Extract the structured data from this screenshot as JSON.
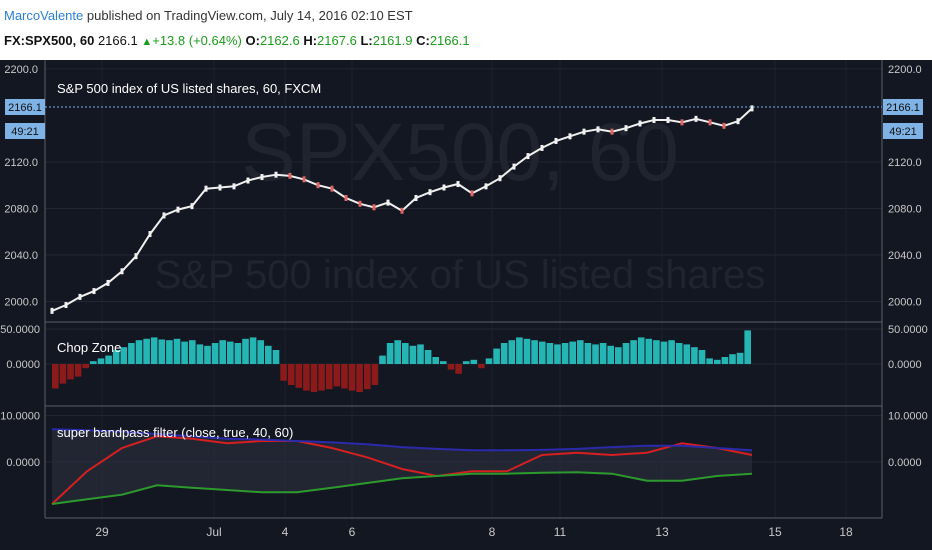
{
  "header": {
    "author": "MarcoValente",
    "published_text": "published on TradingView.com, July 14, 2016 02:10 EST",
    "symbol": "FX:SPX500, 60",
    "last": "2166.1",
    "change": "+13.8 (+0.64%)",
    "o_label": "O:",
    "o": "2162.6",
    "h_label": "H:",
    "h": "2167.6",
    "l_label": "L:",
    "l": "2161.9",
    "c_label": "C:",
    "c": "2166.1"
  },
  "colors": {
    "background": "#131722",
    "candle_body": "#f0f0f0",
    "candle_bear": "#e06666",
    "chop_pos": "#26b5b5",
    "chop_neg": "#8b1a1a",
    "bpf_red": "#d42020",
    "bpf_blue": "#2a2aaa",
    "bpf_green": "#2d9a2d",
    "price_label_bg": "#7fb2e5"
  },
  "chart_data": [
    {
      "type": "line",
      "pane": "price",
      "title": "S&P 500 index of US listed shares, 60, FXCM",
      "watermark_symbol": "SPX500, 60",
      "watermark_desc": "S&P 500 index of US listed shares",
      "y_ticks": [
        "2200.0",
        "2120.0",
        "2080.0",
        "2040.0",
        "2000.0"
      ],
      "ylim": [
        1985,
        2205
      ],
      "last_price_label": "2166.1",
      "countdown_label": "49:21",
      "x_ticks": [
        "29",
        "Jul",
        "4",
        "6",
        "8",
        "11",
        "13",
        "15",
        "18"
      ],
      "x": [
        0,
        4,
        8,
        12,
        16,
        20,
        24,
        28,
        32,
        36,
        40,
        44,
        48,
        52,
        56,
        60,
        64,
        68,
        72,
        76,
        80,
        84,
        88,
        92,
        96,
        100,
        104,
        108,
        112,
        116,
        120,
        124,
        128,
        132,
        136,
        140,
        144,
        148,
        152,
        156,
        160,
        164,
        168,
        172,
        176,
        180,
        184,
        188,
        192,
        196,
        200
      ],
      "close": [
        1992,
        1997,
        2004,
        2009,
        2016,
        2026,
        2039,
        2058,
        2074,
        2079,
        2082,
        2097,
        2098,
        2099,
        2104,
        2107,
        2109,
        2108,
        2105,
        2100,
        2097,
        2089,
        2084,
        2081,
        2085,
        2078,
        2089,
        2094,
        2098,
        2101,
        2093,
        2099,
        2106,
        2116,
        2125,
        2132,
        2138,
        2142,
        2146,
        2148,
        2146,
        2149,
        2153,
        2156,
        2156,
        2154,
        2157,
        2154,
        2151,
        2155,
        2166
      ]
    },
    {
      "type": "bar",
      "pane": "indicator",
      "title": "Chop Zone",
      "y_ticks": [
        "50.0000",
        "0.0000"
      ],
      "ylim": [
        -60,
        60
      ],
      "values": [
        -35,
        -28,
        -22,
        -18,
        -6,
        4,
        8,
        12,
        20,
        24,
        30,
        34,
        36,
        38,
        35,
        34,
        36,
        32,
        34,
        28,
        26,
        30,
        34,
        32,
        30,
        36,
        38,
        34,
        26,
        20,
        -24,
        -30,
        -34,
        -38,
        -40,
        -38,
        -36,
        -32,
        -35,
        -38,
        -40,
        -36,
        -30,
        12,
        30,
        34,
        30,
        26,
        28,
        20,
        10,
        4,
        -8,
        -14,
        4,
        6,
        -6,
        8,
        22,
        30,
        34,
        38,
        36,
        34,
        32,
        30,
        28,
        30,
        32,
        34,
        30,
        28,
        30,
        26,
        24,
        30,
        34,
        38,
        36,
        34,
        32,
        34,
        30,
        28,
        24,
        20,
        8,
        6,
        10,
        14,
        16,
        48
      ]
    },
    {
      "type": "line",
      "pane": "indicator",
      "title": "super bandpass filter (close, true, 40, 60)",
      "y_ticks": [
        "10.0000",
        "0.0000"
      ],
      "ylim": [
        -12,
        12
      ],
      "x": [
        0,
        5,
        10,
        15,
        20,
        25,
        30,
        35,
        40,
        45,
        50,
        55,
        60,
        65,
        70,
        75,
        80,
        85,
        90,
        95,
        100
      ],
      "series": [
        {
          "values": [
            -9,
            -2,
            3,
            5.5,
            5,
            4,
            4.5,
            4.5,
            3,
            1,
            -1.5,
            -3,
            -2,
            -2,
            1.5,
            2,
            1.5,
            2,
            4,
            3,
            1.5
          ]
        },
        {
          "values": [
            7,
            6.8,
            6.5,
            6,
            5.5,
            5,
            4.8,
            4.5,
            4.2,
            3.8,
            3.2,
            2.8,
            2.5,
            2.5,
            2.6,
            2.8,
            3.2,
            3.5,
            3.5,
            3,
            2.5
          ]
        },
        {
          "values": [
            -9,
            -8,
            -7,
            -5,
            -5.5,
            -6,
            -6.5,
            -6.5,
            -5.5,
            -4.5,
            -3.5,
            -3,
            -2.5,
            -2.5,
            -2.3,
            -2.2,
            -2.5,
            -4,
            -4,
            -3,
            -2.5
          ]
        }
      ]
    }
  ]
}
